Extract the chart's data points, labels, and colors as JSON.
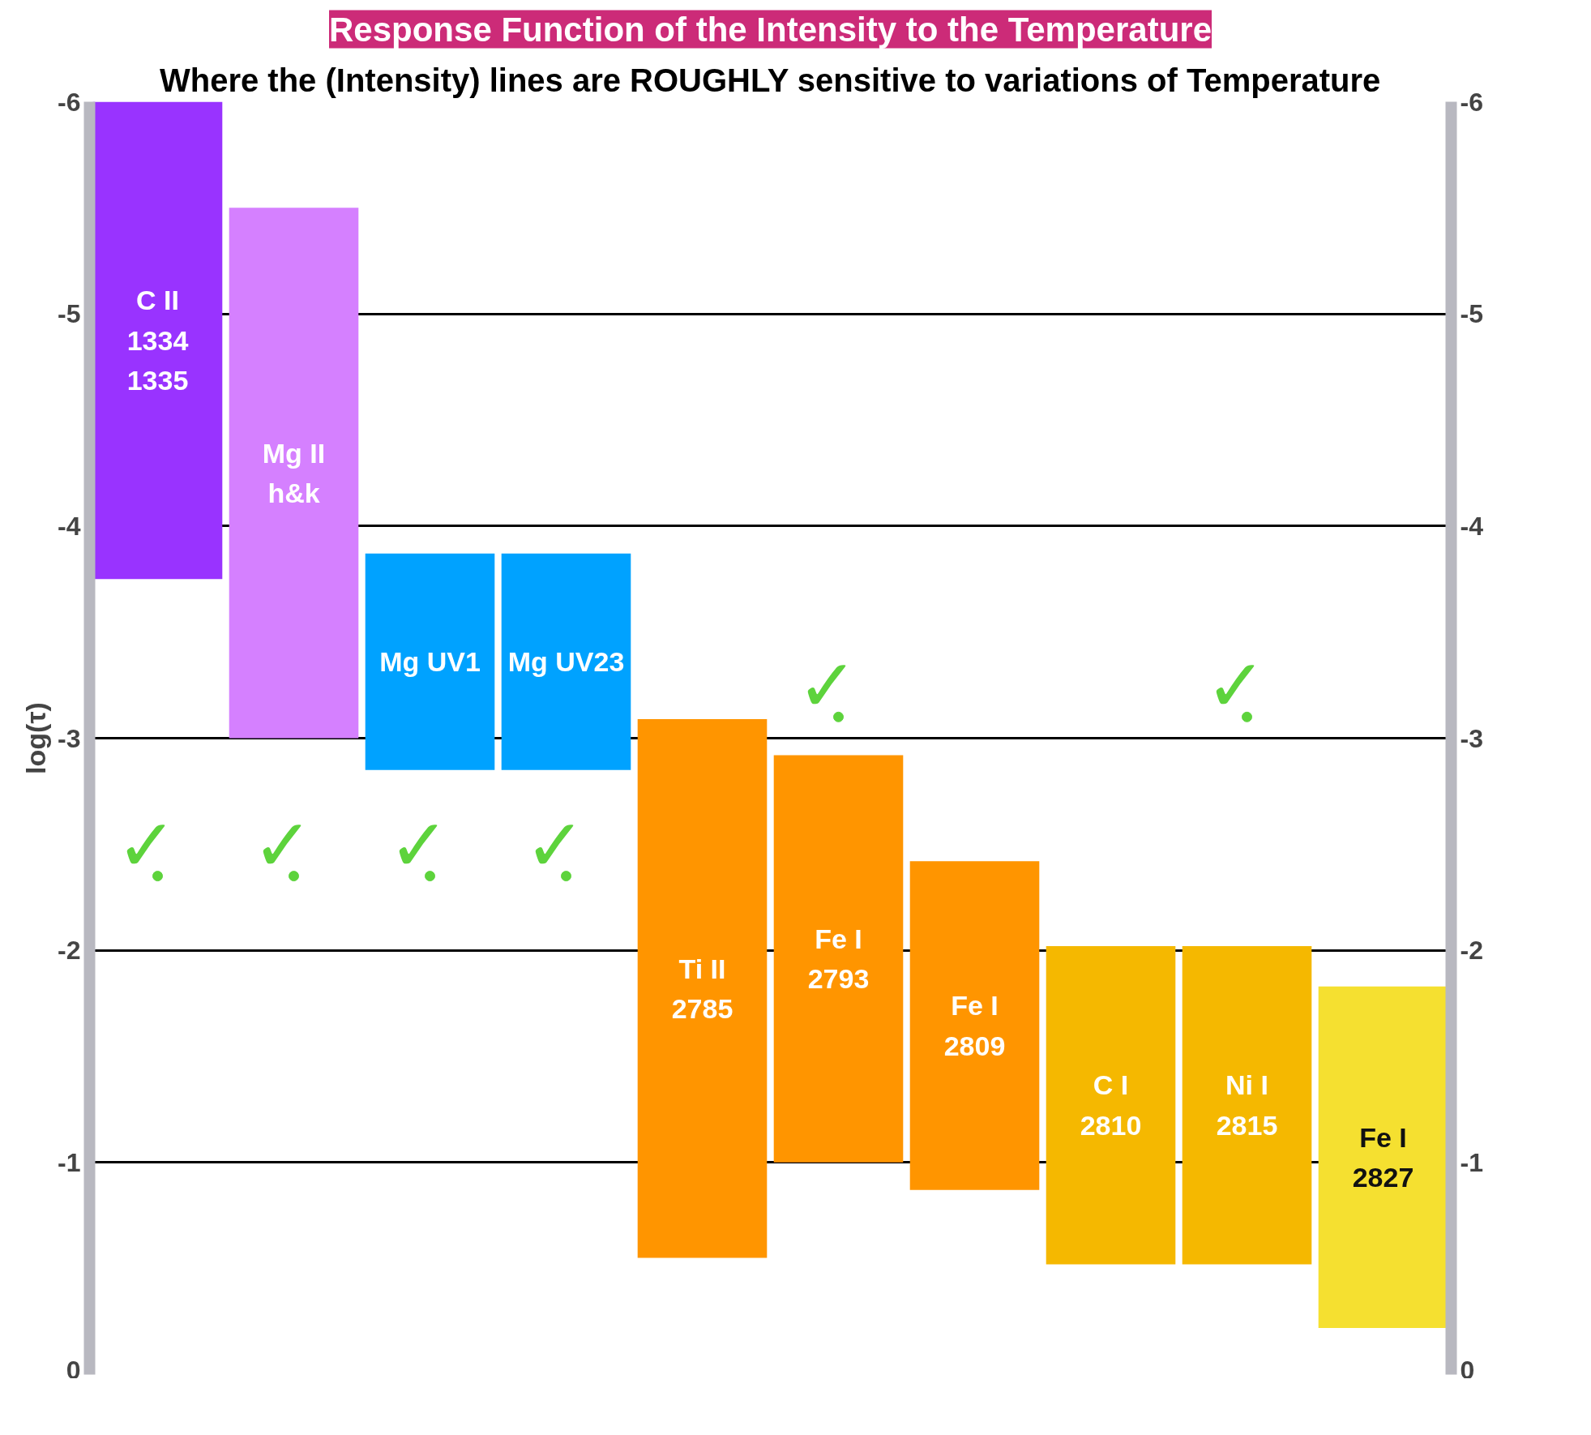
{
  "chart_data": {
    "type": "bar",
    "title": "Response Function of the Intensity to the Temperature",
    "subtitle": "Where the (Intensity) lines are ROUGHLY sensitive to variations of Temperature",
    "ylabel": "log(τ)",
    "categories": [
      "C II\n1334\n1335",
      "Mg II\nh&k",
      "Mg UV1",
      "Mg UV23",
      "Ti II\n2785",
      "Fe I\n2793",
      "Fe I\n2809",
      "C I\n2810",
      "Ni I\n2815",
      "Fe I\n2827"
    ],
    "base": [
      -3.75,
      -3.0,
      -2.85,
      -2.85,
      -0.55,
      -1.0,
      -0.87,
      -0.52,
      -0.52,
      -0.22
    ],
    "values": [
      -2.25,
      -2.5,
      -1.02,
      -1.02,
      -2.54,
      -1.92,
      -1.55,
      -1.5,
      -1.5,
      -1.61
    ],
    "colors": [
      "#9933ff",
      "#d580ff",
      "#00a2ff",
      "#00a2ff",
      "#ff9500",
      "#ff9500",
      "#ff9500",
      "#f5b800",
      "#f5b800",
      "#f5e030"
    ],
    "ylim": [
      0,
      -6
    ],
    "yticks": [
      -6,
      -5,
      -4,
      -3,
      -2,
      -1,
      0
    ],
    "y2lim": [
      0,
      -6
    ],
    "y2ticks": [
      -6,
      -5,
      -4,
      -3,
      -2,
      -1,
      0
    ],
    "grid": "y",
    "series": [
      {
        "type": "scatter",
        "color": "#5dd33c",
        "x": [
          "C II\n1334\n1335",
          "Mg II\nh&k",
          "Mg UV1",
          "Mg UV23",
          "Fe I\n2793",
          "Ni I\n2815"
        ],
        "values": [
          -2.35,
          -2.35,
          -2.35,
          -2.35,
          -3.1,
          -3.1
        ],
        "value_labels": [
          "✓",
          "✓",
          "✓",
          "✓",
          "✓",
          "✓"
        ],
        "marker": "circle"
      }
    ]
  }
}
